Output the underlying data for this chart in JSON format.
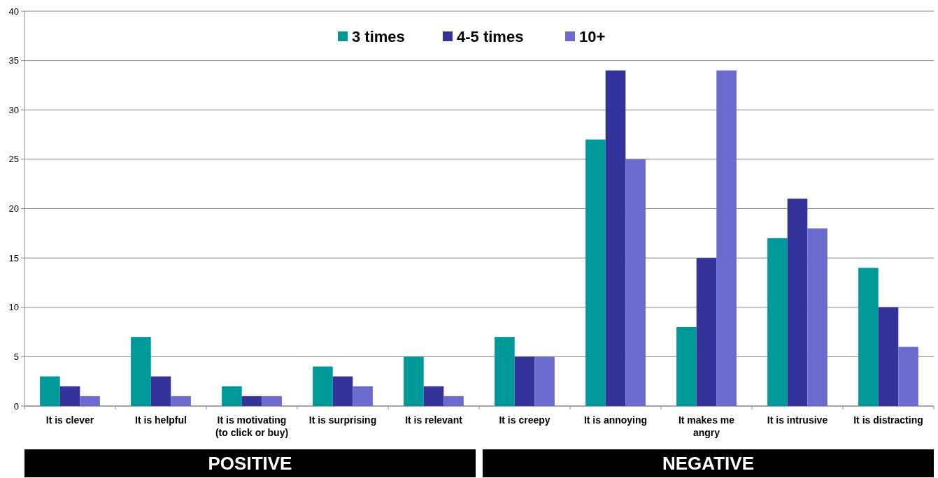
{
  "chart_data": {
    "type": "bar",
    "categories": [
      "It is clever",
      "It is helpful",
      "It is motivating\n(to click or buy)",
      "It is surprising",
      "It is relevant",
      "It is creepy",
      "It is annoying",
      "It makes me\nangry",
      "It is intrusive",
      "It is distracting"
    ],
    "series": [
      {
        "name": "3 times",
        "color": "#009999",
        "values": [
          3,
          7,
          2,
          4,
          5,
          7,
          27,
          8,
          17,
          14
        ]
      },
      {
        "name": "4-5 times",
        "color": "#333399",
        "values": [
          2,
          3,
          1,
          3,
          2,
          5,
          34,
          15,
          21,
          10
        ]
      },
      {
        "name": "10+",
        "color": "#6b6bcf",
        "values": [
          1,
          1,
          1,
          2,
          1,
          5,
          25,
          34,
          18,
          6
        ]
      }
    ],
    "ylim": [
      0,
      40
    ],
    "yticks": [
      0,
      5,
      10,
      15,
      20,
      25,
      30,
      35,
      40
    ],
    "grid": "y",
    "legend": "top",
    "annotations": [
      "POSITIVE",
      "NEGATIVE"
    ]
  }
}
